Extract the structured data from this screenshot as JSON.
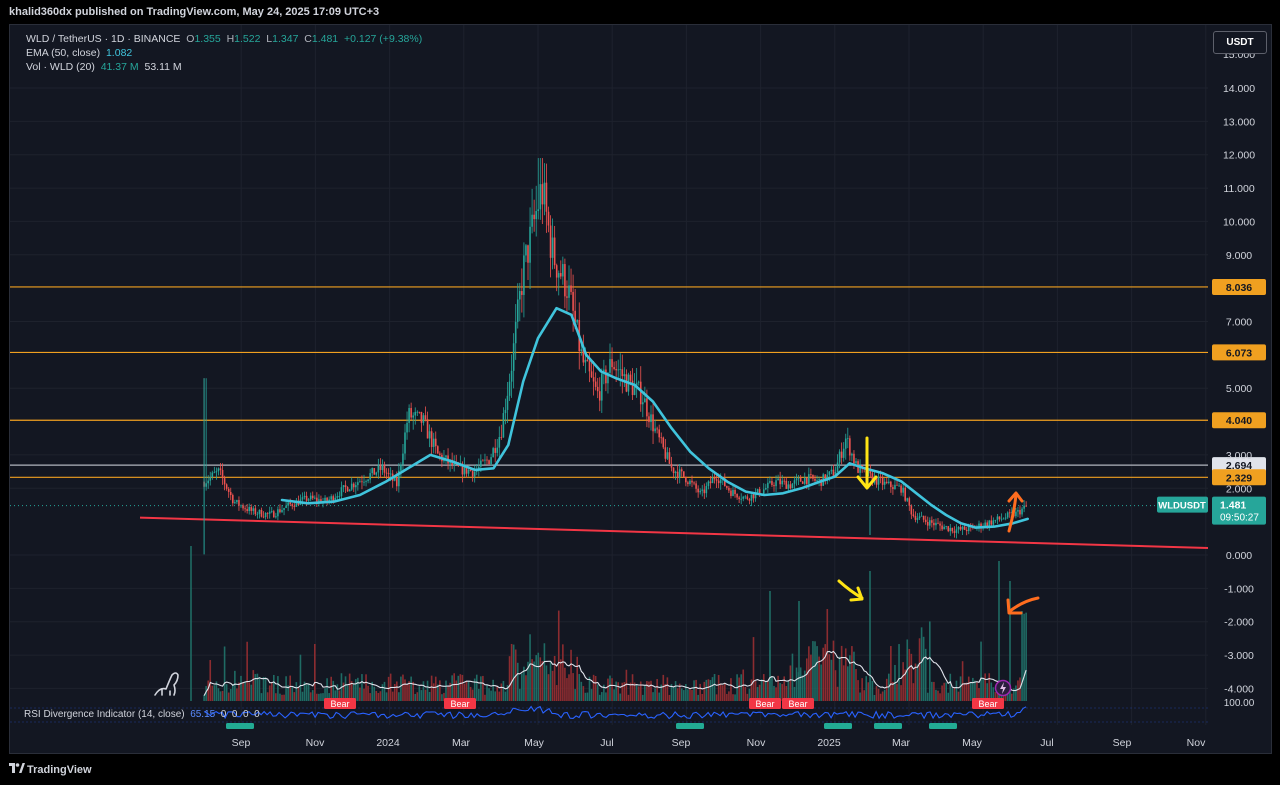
{
  "header": {
    "published_by": "khalid360dx published on TradingView.com, May 24, 2025 17:09 UTC+3"
  },
  "legend": {
    "symbol": "WLD / TetherUS · 1D · BINANCE",
    "open_label": "O",
    "open": "1.355",
    "high_label": "H",
    "high": "1.522",
    "low_label": "L",
    "low": "1.347",
    "close_label": "C",
    "close": "1.481",
    "change": "+0.127 (+9.38%)",
    "ema_label": "EMA (50, close)",
    "ema_value": "1.082",
    "vol_label": "Vol · WLD (20)",
    "vol_ma": "41.37 M",
    "vol_value": "53.11 M"
  },
  "currency_button": "USDT",
  "rsi": {
    "label": "RSI Divergence Indicator (14, close)",
    "value": "65.15",
    "zeros": [
      "0",
      "0",
      "0",
      "0"
    ],
    "axis_label": "100.00"
  },
  "footer": {
    "brand": "TradingView",
    "logo": "tradingview-logo"
  },
  "colors": {
    "background": "#131722",
    "up": "#26a69a",
    "down": "#ef5350",
    "ema": "#40c4dc",
    "level_line": "#f0a020",
    "trendline": "#f23645",
    "rsi": "#2962ff",
    "annotation_yellow": "#ffe414",
    "annotation_orange": "#ff6d1f"
  },
  "icons": [
    "dino-icon",
    "lightning-icon",
    "yellow-arrow-down-icon",
    "yellow-arrow-right-icon",
    "orange-arrow-up-icon",
    "orange-arrow-left-icon"
  ],
  "chart_data": {
    "type": "candlestick",
    "symbol": "WLDUSDT",
    "x_ticks": [
      "Sep",
      "Nov",
      "2024",
      "Mar",
      "May",
      "Jul",
      "Sep",
      "Nov",
      "2025",
      "Mar",
      "May",
      "Jul",
      "Sep",
      "Nov"
    ],
    "y_ticks": [
      "14.000",
      "13.000",
      "12.000",
      "11.000",
      "10.000",
      "9.000",
      "7.000",
      "5.000",
      "3.000",
      "2.000",
      "0.000",
      "-1.000",
      "-2.000",
      "-3.000",
      "-4.000"
    ],
    "y_top_partial_label": "15.000",
    "y_range": [
      -4.5,
      15.5
    ],
    "horizontal_levels": [
      {
        "value": 8.036,
        "label": "8.036",
        "color": "#f0a020"
      },
      {
        "value": 6.073,
        "label": "6.073",
        "color": "#f0a020"
      },
      {
        "value": 4.04,
        "label": "4.040",
        "color": "#f0a020"
      },
      {
        "value": 2.694,
        "label": "2.694",
        "color": "#b2b5be"
      },
      {
        "value": 2.329,
        "label": "2.329",
        "color": "#f0a020"
      }
    ],
    "price_tag": {
      "symbol": "WLDUSDT",
      "price": "1.481",
      "countdown": "09:50:27"
    },
    "trendline": {
      "from": {
        "month": 0.0,
        "value": 1.15
      },
      "to": {
        "month": 21.3,
        "value": 0.45
      }
    },
    "price_path": [
      [
        1.0,
        2.2
      ],
      [
        1.4,
        2.5
      ],
      [
        1.8,
        1.6
      ],
      [
        2.3,
        1.3
      ],
      [
        2.8,
        1.2
      ],
      [
        3.3,
        1.5
      ],
      [
        3.8,
        1.7
      ],
      [
        4.3,
        1.6
      ],
      [
        4.8,
        2.0
      ],
      [
        5.3,
        2.3
      ],
      [
        5.8,
        2.6
      ],
      [
        6.2,
        2.1
      ],
      [
        6.5,
        4.2
      ],
      [
        6.9,
        4.0
      ],
      [
        7.3,
        3.0
      ],
      [
        7.8,
        2.6
      ],
      [
        8.3,
        2.5
      ],
      [
        8.7,
        2.9
      ],
      [
        9.0,
        3.7
      ],
      [
        9.3,
        5.8
      ],
      [
        9.6,
        8.5
      ],
      [
        9.9,
        10.0
      ],
      [
        10.1,
        11.0
      ],
      [
        10.4,
        9.0
      ],
      [
        10.8,
        8.0
      ],
      [
        11.2,
        5.8
      ],
      [
        11.6,
        4.8
      ],
      [
        12.0,
        5.8
      ],
      [
        12.4,
        5.2
      ],
      [
        12.8,
        4.8
      ],
      [
        13.2,
        3.6
      ],
      [
        13.6,
        2.6
      ],
      [
        14.0,
        2.3
      ],
      [
        14.4,
        1.8
      ],
      [
        14.8,
        2.4
      ],
      [
        15.2,
        1.9
      ],
      [
        15.6,
        1.7
      ],
      [
        16.0,
        1.9
      ],
      [
        16.4,
        2.2
      ],
      [
        16.8,
        2.1
      ],
      [
        17.2,
        2.3
      ],
      [
        17.6,
        2.2
      ],
      [
        18.0,
        2.5
      ],
      [
        18.3,
        3.5
      ],
      [
        18.6,
        2.6
      ],
      [
        19.0,
        2.3
      ],
      [
        19.4,
        2.1
      ],
      [
        19.8,
        2.0
      ],
      [
        20.1,
        1.2
      ],
      [
        20.5,
        1.0
      ],
      [
        20.9,
        0.85
      ],
      [
        21.3,
        0.75
      ],
      [
        21.7,
        0.8
      ],
      [
        22.1,
        0.95
      ],
      [
        22.5,
        1.1
      ],
      [
        22.9,
        1.25
      ],
      [
        23.2,
        1.48
      ]
    ],
    "ema_path": [
      [
        3.1,
        1.65
      ],
      [
        3.8,
        1.55
      ],
      [
        4.5,
        1.6
      ],
      [
        5.2,
        1.8
      ],
      [
        5.9,
        2.2
      ],
      [
        6.5,
        2.6
      ],
      [
        7.1,
        3.0
      ],
      [
        7.7,
        2.8
      ],
      [
        8.3,
        2.55
      ],
      [
        8.8,
        2.6
      ],
      [
        9.2,
        3.3
      ],
      [
        9.6,
        5.2
      ],
      [
        10.0,
        6.5
      ],
      [
        10.5,
        7.4
      ],
      [
        10.9,
        7.2
      ],
      [
        11.3,
        6.0
      ],
      [
        11.7,
        5.5
      ],
      [
        12.1,
        5.3
      ],
      [
        12.6,
        5.1
      ],
      [
        13.1,
        4.6
      ],
      [
        13.6,
        3.8
      ],
      [
        14.1,
        3.1
      ],
      [
        14.6,
        2.6
      ],
      [
        15.1,
        2.2
      ],
      [
        15.6,
        1.9
      ],
      [
        16.1,
        1.8
      ],
      [
        16.6,
        1.85
      ],
      [
        17.1,
        2.0
      ],
      [
        17.6,
        2.2
      ],
      [
        18.0,
        2.35
      ],
      [
        18.4,
        2.75
      ],
      [
        18.8,
        2.6
      ],
      [
        19.3,
        2.45
      ],
      [
        19.8,
        2.2
      ],
      [
        20.2,
        1.85
      ],
      [
        20.6,
        1.5
      ],
      [
        21.0,
        1.2
      ],
      [
        21.4,
        0.95
      ],
      [
        21.8,
        0.82
      ],
      [
        22.3,
        0.85
      ],
      [
        22.8,
        0.95
      ],
      [
        23.2,
        1.082
      ]
    ],
    "annotations": [
      "Bear",
      "Bear",
      "Bear",
      "Bear",
      "Bear",
      "Bear"
    ]
  }
}
